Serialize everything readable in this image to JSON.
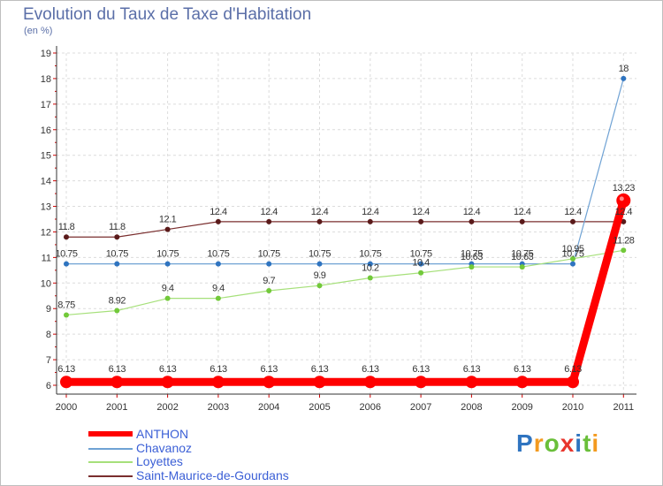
{
  "chart_data": {
    "type": "line",
    "title": "Evolution du Taux de Taxe d'Habitation",
    "unit": "(en %)",
    "xlabel": "",
    "ylabel": "",
    "categories": [
      "2000",
      "2001",
      "2002",
      "2003",
      "2004",
      "2005",
      "2006",
      "2007",
      "2008",
      "2009",
      "2010",
      "2011"
    ],
    "ylim": [
      6,
      19
    ],
    "yticks": [
      6,
      7,
      8,
      9,
      10,
      11,
      12,
      13,
      14,
      15,
      16,
      17,
      18,
      19
    ],
    "series": [
      {
        "name": "Saint-Maurice-de-Gourdans",
        "color": "#7a2e2e",
        "point_color": "#5a1a1a",
        "values": [
          11.8,
          11.8,
          12.1,
          12.4,
          12.4,
          12.4,
          12.4,
          12.4,
          12.4,
          12.4,
          12.4,
          12.4
        ],
        "labels": [
          "11.8",
          "11.8",
          "12.1",
          "12.4",
          "12.4",
          "12.4",
          "12.4",
          "12.4",
          "12.4",
          "12.4",
          "12.4",
          "12.4"
        ]
      },
      {
        "name": "Chavanoz",
        "color": "#6fa2d4",
        "point_color": "#2f74c0",
        "values": [
          10.75,
          10.75,
          10.75,
          10.75,
          10.75,
          10.75,
          10.75,
          10.75,
          10.75,
          10.75,
          10.75,
          18
        ],
        "labels": [
          "10.75",
          "10.75",
          "10.75",
          "10.75",
          "10.75",
          "10.75",
          "10.75",
          "10.75",
          "10.75",
          "10.75",
          "10.75",
          "18"
        ]
      },
      {
        "name": "Loyettes",
        "color": "#a6e07a",
        "point_color": "#72c93a",
        "values": [
          8.75,
          8.92,
          9.4,
          9.4,
          9.7,
          9.9,
          10.2,
          10.4,
          10.63,
          10.63,
          10.95,
          11.28
        ],
        "labels": [
          "8.75",
          "8.92",
          "9.4",
          "9.4",
          "9.7",
          "9.9",
          "10.2",
          "10.4",
          "10.63",
          "10.63",
          "10.95",
          "11.28"
        ]
      },
      {
        "name": "ANTHON",
        "color": "#ff0000",
        "point_color": "#ff0000",
        "values": [
          6.13,
          6.13,
          6.13,
          6.13,
          6.13,
          6.13,
          6.13,
          6.13,
          6.13,
          6.13,
          6.13,
          13.23
        ],
        "labels": [
          "6.13",
          "6.13",
          "6.13",
          "6.13",
          "6.13",
          "6.13",
          "6.13",
          "6.13",
          "6.13",
          "6.13",
          "6.13",
          "13.23"
        ]
      }
    ],
    "legend": [
      "ANTHON",
      "Chavanoz",
      "Loyettes",
      "Saint-Maurice-de-Gourdans"
    ]
  },
  "brand": {
    "letters": [
      "P",
      "r",
      "o",
      "x",
      "i",
      "t",
      "i"
    ],
    "colors": [
      "#2f74c0",
      "#f39a1f",
      "#6abf3a",
      "#e8362d",
      "#2f74c0",
      "#6abf3a",
      "#f39a1f"
    ]
  }
}
